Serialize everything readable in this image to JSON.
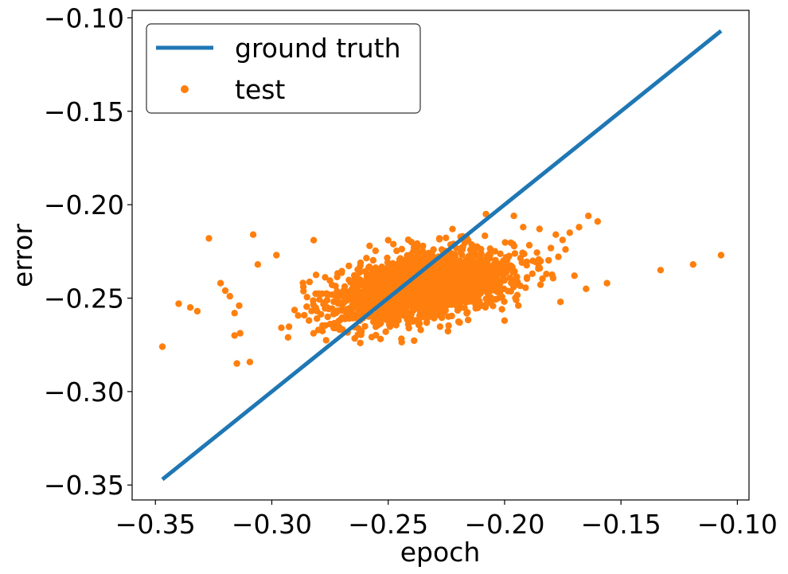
{
  "chart_data": {
    "type": "scatter",
    "xlabel": "epoch",
    "ylabel": "error",
    "xlim": [
      -0.36,
      -0.095
    ],
    "ylim": [
      -0.358,
      -0.096
    ],
    "xticks": [
      -0.35,
      -0.3,
      -0.25,
      -0.2,
      -0.15,
      -0.1
    ],
    "xtick_labels": [
      "−0.35",
      "−0.30",
      "−0.25",
      "−0.20",
      "−0.15",
      "−0.10"
    ],
    "yticks": [
      -0.1,
      -0.15,
      -0.2,
      -0.25,
      -0.3,
      -0.35
    ],
    "ytick_labels": [
      "−0.10",
      "−0.15",
      "−0.20",
      "−0.25",
      "−0.30",
      "−0.35"
    ],
    "grid": false,
    "legend_position": "top-left",
    "series": [
      {
        "name": "ground truth",
        "kind": "line",
        "color": "#1f77b4",
        "x": [
          -0.347,
          -0.107
        ],
        "y": [
          -0.347,
          -0.107
        ]
      },
      {
        "name": "test",
        "kind": "scatter",
        "color": "#ff7f0e",
        "cluster": {
          "count": 2200,
          "x_mean": -0.235,
          "x_std": 0.019,
          "y_intercept": -0.244,
          "y_slope": 0.22,
          "y_noise": 0.0085
        },
        "x": [
          -0.347,
          -0.34,
          -0.335,
          -0.332,
          -0.327,
          -0.322,
          -0.32,
          -0.318,
          -0.316,
          -0.316,
          -0.315,
          -0.314,
          -0.308,
          -0.306,
          -0.298,
          -0.293,
          -0.282,
          -0.28,
          -0.276,
          -0.262,
          -0.258,
          -0.25,
          -0.24,
          -0.236,
          -0.228,
          -0.218,
          -0.208,
          -0.2,
          -0.2,
          -0.196,
          -0.195,
          -0.192,
          -0.185,
          -0.178,
          -0.176,
          -0.172,
          -0.17,
          -0.168,
          -0.165,
          -0.164,
          -0.16,
          -0.156,
          -0.133,
          -0.119,
          -0.107
        ],
        "y": [
          -0.276,
          -0.253,
          -0.255,
          -0.257,
          -0.218,
          -0.242,
          -0.246,
          -0.249,
          -0.258,
          -0.27,
          -0.285,
          -0.254,
          -0.216,
          -0.232,
          -0.227,
          -0.271,
          -0.219,
          -0.267,
          -0.26,
          -0.274,
          -0.222,
          -0.219,
          -0.22,
          -0.267,
          -0.218,
          -0.217,
          -0.205,
          -0.236,
          -0.262,
          -0.206,
          -0.251,
          -0.212,
          -0.213,
          -0.216,
          -0.252,
          -0.215,
          -0.238,
          -0.212,
          -0.245,
          -0.206,
          -0.209,
          -0.242,
          -0.235,
          -0.232,
          -0.227
        ]
      }
    ]
  }
}
